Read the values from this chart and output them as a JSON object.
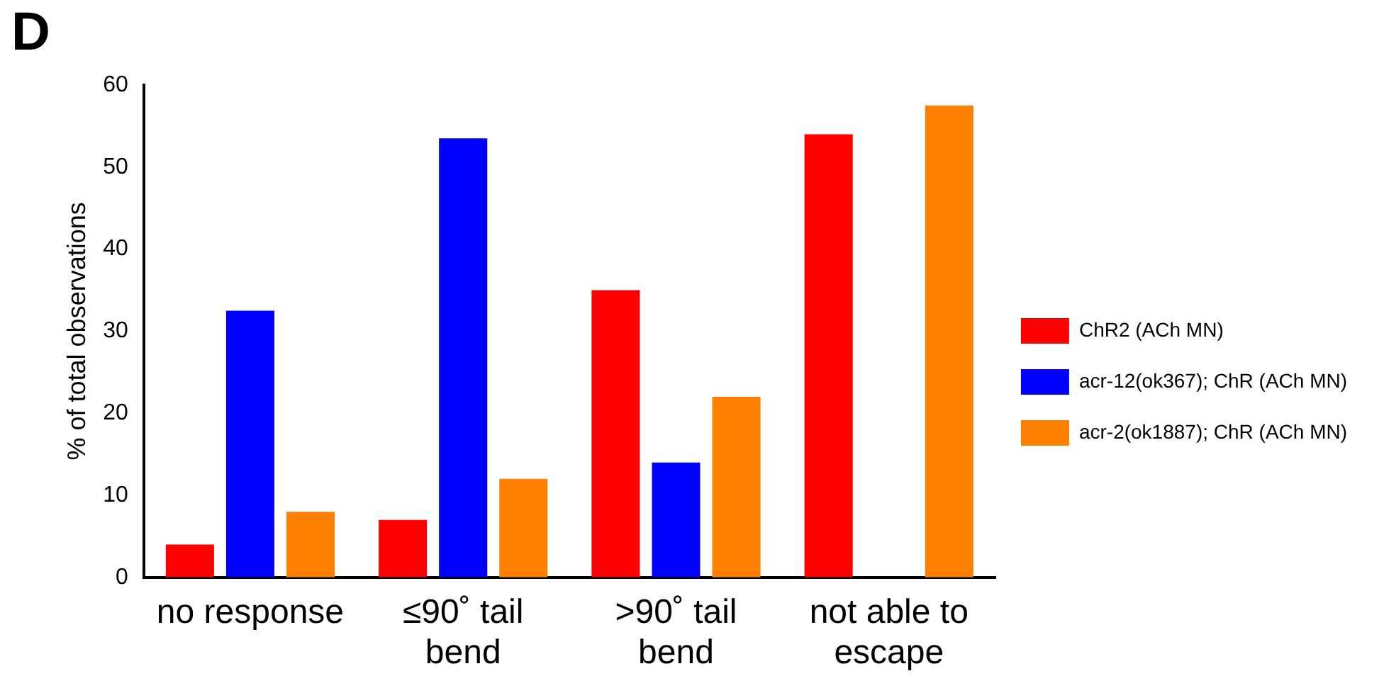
{
  "chart_data": {
    "type": "bar",
    "ylabel": "% of total observations",
    "annotations": [
      "D"
    ],
    "categories": [
      "no response",
      "≤90˚ tail bend",
      ">90˚ tail bend",
      "not able to escape"
    ],
    "series": [
      {
        "name": "ChR2 (ACh MN)",
        "color": "#ff0000",
        "values": [
          4,
          7,
          35,
          54
        ]
      },
      {
        "name": "acr-12(ok367); ChR (ACh MN)",
        "color": "#0000ff",
        "values": [
          32.5,
          53.5,
          14,
          null
        ]
      },
      {
        "name": "acr-2(ok1887); ChR (ACh MN)",
        "color": "#ff8000",
        "values": [
          8,
          12,
          22,
          57.5
        ]
      }
    ],
    "ylim": [
      0,
      60
    ],
    "yticks": [
      0,
      10,
      20,
      30,
      40,
      50,
      60
    ],
    "grid": false,
    "legend": "right"
  }
}
